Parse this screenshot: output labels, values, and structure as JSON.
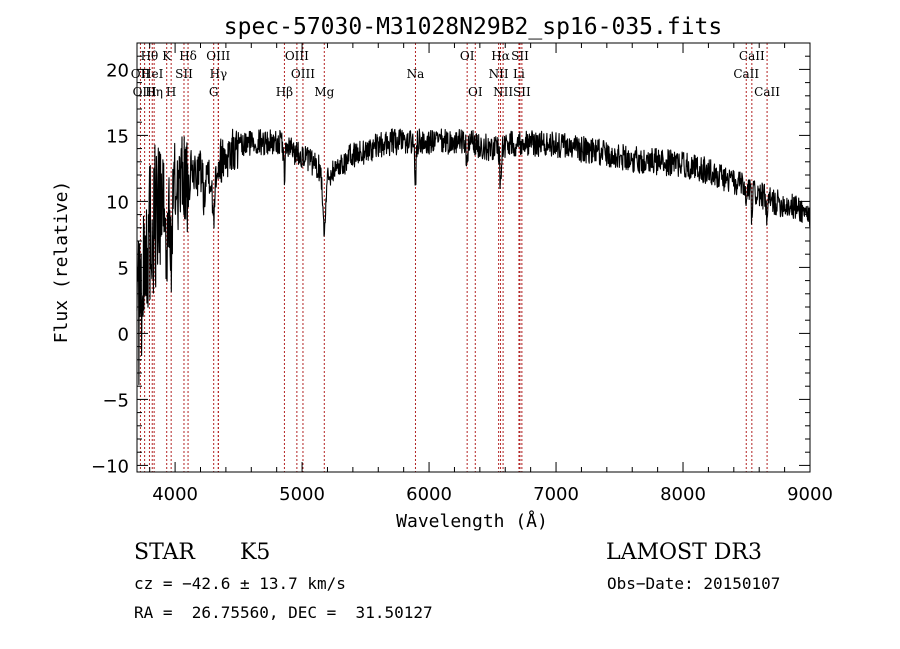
{
  "chart_data": {
    "type": "line",
    "title": "spec-57030-M31028N29B2_sp16-035.fits",
    "xlabel": "Wavelength (Å)",
    "ylabel": "Flux (relative)",
    "xlim": [
      3700,
      9000
    ],
    "ylim": [
      -10.5,
      22
    ],
    "xticks": [
      4000,
      5000,
      6000,
      7000,
      8000,
      9000
    ],
    "xtick_labels": [
      "4000",
      "5000",
      "6000",
      "7000",
      "8000",
      "9000"
    ],
    "yticks": [
      -10,
      -5,
      0,
      5,
      10,
      15,
      20
    ],
    "ytick_labels": [
      "−10",
      "−5",
      "0",
      "5",
      "10",
      "15",
      "20"
    ],
    "spectrum_continuum_knots": [
      [
        3700,
        4
      ],
      [
        3800,
        8
      ],
      [
        3900,
        10
      ],
      [
        4000,
        11
      ],
      [
        4100,
        12
      ],
      [
        4300,
        12.5
      ],
      [
        4400,
        13.5
      ],
      [
        4600,
        14.5
      ],
      [
        4800,
        14.5
      ],
      [
        5000,
        13.5
      ],
      [
        5200,
        12
      ],
      [
        5400,
        13.5
      ],
      [
        5700,
        14.5
      ],
      [
        6000,
        14.5
      ],
      [
        6300,
        14.5
      ],
      [
        6500,
        14
      ],
      [
        6700,
        14.5
      ],
      [
        7000,
        14.3
      ],
      [
        7300,
        13.8
      ],
      [
        7600,
        13.2
      ],
      [
        8000,
        12.8
      ],
      [
        8200,
        12.3
      ],
      [
        8500,
        11
      ],
      [
        8700,
        10
      ],
      [
        8900,
        9.5
      ],
      [
        9000,
        9
      ]
    ],
    "spectrum_absorption_features": [
      [
        3933,
        6.0,
        8
      ],
      [
        3968,
        5.0,
        8
      ],
      [
        4102,
        3.0,
        6
      ],
      [
        4227,
        2.0,
        6
      ],
      [
        4300,
        3.5,
        10
      ],
      [
        4861,
        2.0,
        6
      ],
      [
        5175,
        4.0,
        12
      ],
      [
        5893,
        3.0,
        6
      ],
      [
        6300,
        2.0,
        6
      ],
      [
        6563,
        3.0,
        6
      ],
      [
        8498,
        1.5,
        5
      ],
      [
        8542,
        2.0,
        5
      ],
      [
        8662,
        2.0,
        5
      ]
    ],
    "lines": [
      {
        "label": "Hθ",
        "x": 3798,
        "row": 1
      },
      {
        "label": "OII",
        "x": 3727,
        "row": 2
      },
      {
        "label": "HeI",
        "x": 3820,
        "row": 2
      },
      {
        "label": "OIII",
        "x": 3760,
        "row": 3
      },
      {
        "label": "Hη",
        "x": 3835,
        "row": 3
      },
      {
        "label": "K",
        "x": 3934,
        "row": 1
      },
      {
        "label": "H",
        "x": 3969,
        "row": 3
      },
      {
        "label": "SII",
        "x": 4070,
        "row": 2
      },
      {
        "label": "Hδ",
        "x": 4102,
        "row": 1
      },
      {
        "label": "OIII",
        "x": 4340,
        "row": 1
      },
      {
        "label": "Hγ",
        "x": 4341,
        "row": 2
      },
      {
        "label": "G",
        "x": 4304,
        "row": 3
      },
      {
        "label": "Hβ",
        "x": 4861,
        "row": 3
      },
      {
        "label": "OIII",
        "x": 4959,
        "row": 1
      },
      {
        "label": "OIII",
        "x": 5007,
        "row": 2
      },
      {
        "label": "Mg",
        "x": 5175,
        "row": 3
      },
      {
        "label": "Na",
        "x": 5893,
        "row": 2
      },
      {
        "label": "OI",
        "x": 6300,
        "row": 1
      },
      {
        "label": "OI",
        "x": 6364,
        "row": 3
      },
      {
        "label": "Hα",
        "x": 6563,
        "row": 1
      },
      {
        "label": "NII",
        "x": 6548,
        "row": 2
      },
      {
        "label": "NII",
        "x": 6583,
        "row": 3
      },
      {
        "label": "SII",
        "x": 6716,
        "row": 1
      },
      {
        "label": "Li",
        "x": 6708,
        "row": 2
      },
      {
        "label": "SII",
        "x": 6731,
        "row": 3
      },
      {
        "label": "CaII",
        "x": 8498,
        "row": 2
      },
      {
        "label": "CaII",
        "x": 8542,
        "row": 1
      },
      {
        "label": "CaII",
        "x": 8662,
        "row": 3
      }
    ]
  },
  "info": {
    "class": "STAR",
    "subclass": "K5",
    "survey": "LAMOST DR3",
    "cz": "cz = −42.6 ± 13.7 km/s",
    "obs_date": "Obs−Date: 20150107",
    "radec": "RA =  26.75560, DEC =  31.50127"
  }
}
